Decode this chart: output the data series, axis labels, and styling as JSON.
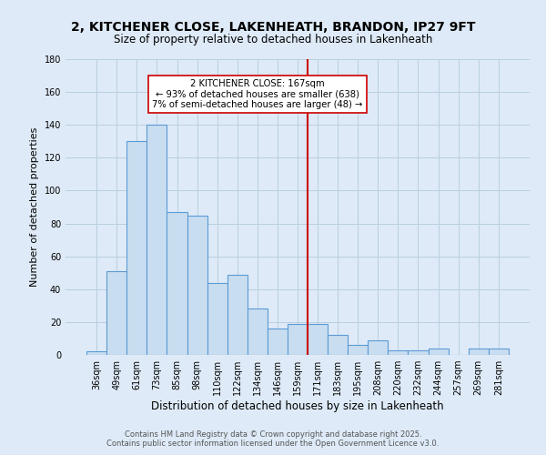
{
  "title": "2, KITCHENER CLOSE, LAKENHEATH, BRANDON, IP27 9FT",
  "subtitle": "Size of property relative to detached houses in Lakenheath",
  "xlabel": "Distribution of detached houses by size in Lakenheath",
  "ylabel": "Number of detached properties",
  "bar_labels": [
    "36sqm",
    "49sqm",
    "61sqm",
    "73sqm",
    "85sqm",
    "98sqm",
    "110sqm",
    "122sqm",
    "134sqm",
    "146sqm",
    "159sqm",
    "171sqm",
    "183sqm",
    "195sqm",
    "208sqm",
    "220sqm",
    "232sqm",
    "244sqm",
    "257sqm",
    "269sqm",
    "281sqm"
  ],
  "bar_values": [
    2,
    51,
    130,
    140,
    87,
    85,
    44,
    49,
    28,
    16,
    19,
    19,
    12,
    6,
    9,
    3,
    3,
    4,
    0,
    4,
    4
  ],
  "bar_color": "#c9ddf0",
  "bar_edge_color": "#5b9bd5",
  "ylim": [
    0,
    180
  ],
  "yticks": [
    0,
    20,
    40,
    60,
    80,
    100,
    120,
    140,
    160,
    180
  ],
  "vline_index": 11,
  "vline_color": "#cc0000",
  "annotation_title": "2 KITCHENER CLOSE: 167sqm",
  "annotation_line1": "← 93% of detached houses are smaller (638)",
  "annotation_line2": "7% of semi-detached houses are larger (48) →",
  "footer_line1": "Contains HM Land Registry data © Crown copyright and database right 2025.",
  "footer_line2": "Contains public sector information licensed under the Open Government Licence v3.0.",
  "background_color": "#deeaf7",
  "fig_background_color": "#deeaf7",
  "grid_color": "#b8cfe0",
  "title_fontsize": 10,
  "subtitle_fontsize": 8.5,
  "tick_fontsize": 7,
  "ylabel_fontsize": 8,
  "xlabel_fontsize": 8.5,
  "footer_fontsize": 6
}
